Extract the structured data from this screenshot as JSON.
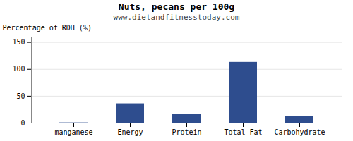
{
  "chart_data": {
    "type": "bar",
    "title": "Nuts, pecans per 100g",
    "subtitle": "www.dietandfitnesstoday.com",
    "categories": [
      "manganese",
      "Energy",
      "Protein",
      "Total-Fat",
      "Carbohydrate"
    ],
    "values": [
      0.5,
      36,
      16,
      113,
      12
    ],
    "color": "#2e4d8e",
    "ylabel": "Percentage of RDH (%)",
    "ylim": [
      0,
      160
    ],
    "yticks": [
      0,
      50,
      100,
      150
    ],
    "grid": true
  }
}
